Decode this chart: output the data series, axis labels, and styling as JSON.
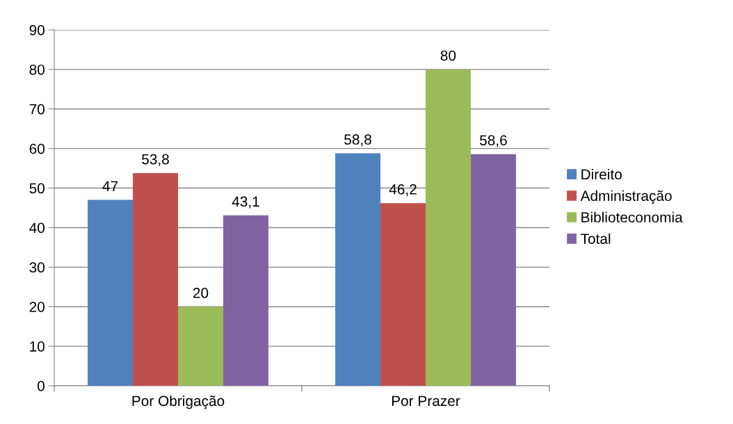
{
  "chart_data": {
    "type": "bar",
    "categories": [
      "Por Obrigação",
      "Por Prazer"
    ],
    "series": [
      {
        "name": "Direito",
        "color": "#4f81bd",
        "values": [
          47,
          58.8
        ],
        "value_labels": [
          "47",
          "58,8"
        ]
      },
      {
        "name": "Administração",
        "color": "#c0504d",
        "values": [
          53.8,
          46.2
        ],
        "value_labels": [
          "53,8",
          "46,2"
        ]
      },
      {
        "name": "Biblioteconomia",
        "color": "#9bbb59",
        "values": [
          20,
          80
        ],
        "value_labels": [
          "20",
          "80"
        ]
      },
      {
        "name": "Total",
        "color": "#8064a2",
        "values": [
          43.1,
          58.6
        ],
        "value_labels": [
          "43,1",
          "58,6"
        ]
      }
    ],
    "ylim": [
      0,
      90
    ],
    "yticks": [
      0,
      10,
      20,
      30,
      40,
      50,
      60,
      70,
      80,
      90
    ],
    "grid": "y",
    "legend": "right"
  }
}
